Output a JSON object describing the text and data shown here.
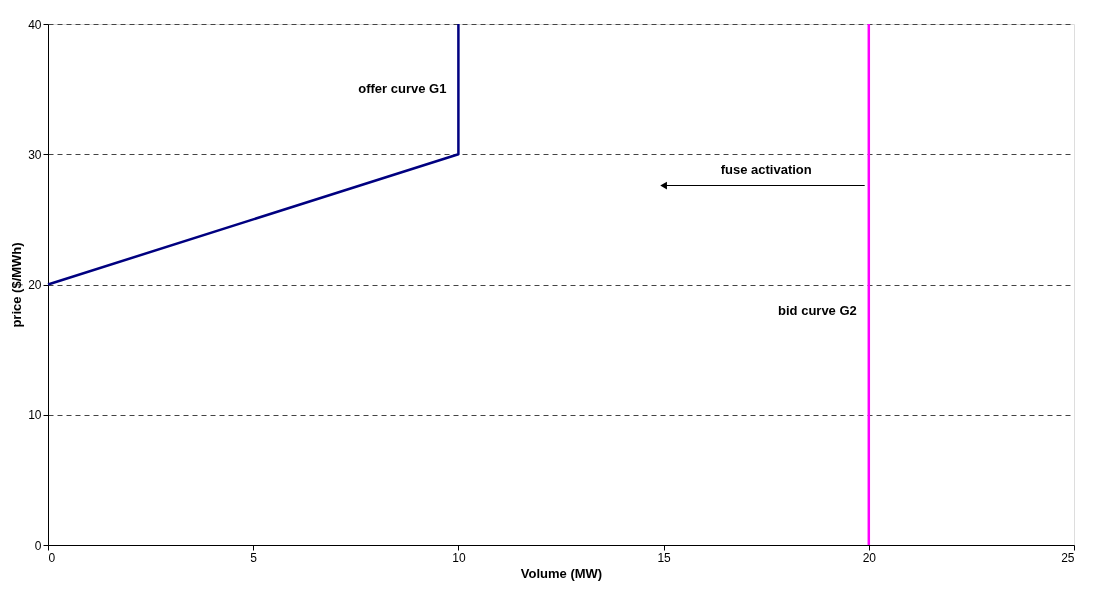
{
  "chart_data": {
    "type": "line",
    "xlabel": "Volume (MW)",
    "ylabel": "price ($/MWh)",
    "xlim": [
      0,
      25
    ],
    "xticks": [
      0,
      5,
      10,
      15,
      20,
      25
    ],
    "ylim": [
      0,
      40
    ],
    "yticks": [
      0,
      10,
      20,
      30,
      40
    ],
    "grid": "y",
    "legend": false,
    "marker": "none",
    "line_style": "solid",
    "series": [
      {
        "name": "offer curve G1",
        "color": "#000080",
        "x": [
          0,
          10,
          10
        ],
        "values": [
          20,
          30,
          40
        ]
      },
      {
        "name": "bid curve G2",
        "color": "#ff00ff",
        "x": [
          20,
          20
        ],
        "values": [
          0,
          40
        ]
      }
    ],
    "annotations": [
      "fuse activation"
    ]
  }
}
